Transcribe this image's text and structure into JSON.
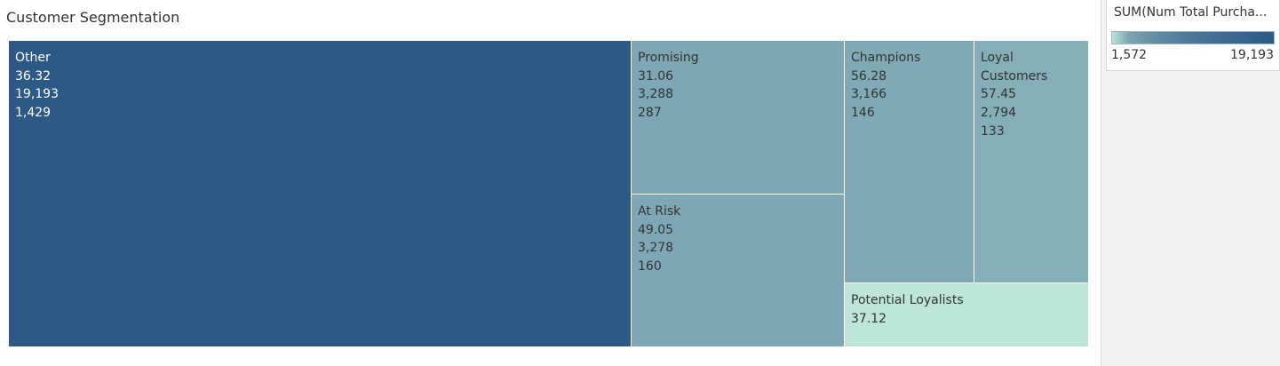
{
  "chart_data": {
    "type": "treemap",
    "title": "Customer Segmentation",
    "size_measure": "SUM(Num Total Purcha...",
    "color_measure": "SUM(Num Total Purcha...",
    "color_range": [
      1572,
      19193
    ],
    "colors": {
      "low": "#bde5d8",
      "high": "#2d5986"
    },
    "segments": [
      {
        "name": "Other",
        "values": [
          "36.32",
          "19,193",
          "1,429"
        ]
      },
      {
        "name": "Promising",
        "values": [
          "31.06",
          "3,288",
          "287"
        ]
      },
      {
        "name": "At Risk",
        "values": [
          "49.05",
          "3,278",
          "160"
        ]
      },
      {
        "name": "Champions",
        "values": [
          "56.28",
          "3,166",
          "146"
        ]
      },
      {
        "name": "Loyal Customers",
        "values": [
          "57.45",
          "2,794",
          "133"
        ]
      },
      {
        "name": "Potential Loyalists",
        "values": [
          "37.12"
        ],
        "color_value": 1572
      }
    ]
  },
  "legend": {
    "title": "SUM(Num Total Purcha...",
    "min_label": "1,572",
    "max_label": "19,193"
  }
}
